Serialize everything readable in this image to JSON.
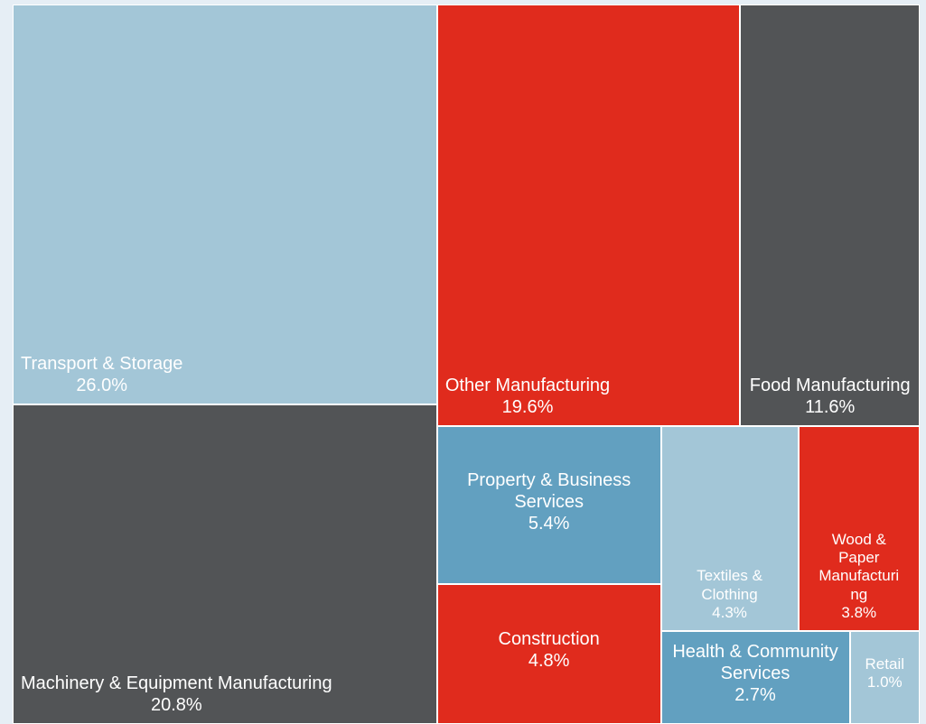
{
  "chart_data": {
    "type": "treemap",
    "categories": [
      "Transport & Storage",
      "Machinery & Equipment Manufacturing",
      "Other Manufacturing",
      "Food Manufacturing",
      "Property & Business Services",
      "Construction",
      "Textiles & Clothing",
      "Wood & Paper Manufacturing",
      "Health & Community Services",
      "Retail"
    ],
    "values": [
      26.0,
      20.8,
      19.6,
      11.6,
      5.4,
      4.8,
      4.3,
      3.8,
      2.7,
      1.0
    ],
    "value_labels": [
      "26.0%",
      "20.8%",
      "19.6%",
      "11.6%",
      "5.4%",
      "4.8%",
      "4.3%",
      "3.8%",
      "2.7%",
      "1.0%"
    ],
    "colors": [
      "#a3c6d7",
      "#525456",
      "#e02b1d",
      "#525456",
      "#62a0c0",
      "#e02b1d",
      "#a3c6d7",
      "#e02b1d",
      "#62a0c0",
      "#a3c6d7"
    ]
  }
}
